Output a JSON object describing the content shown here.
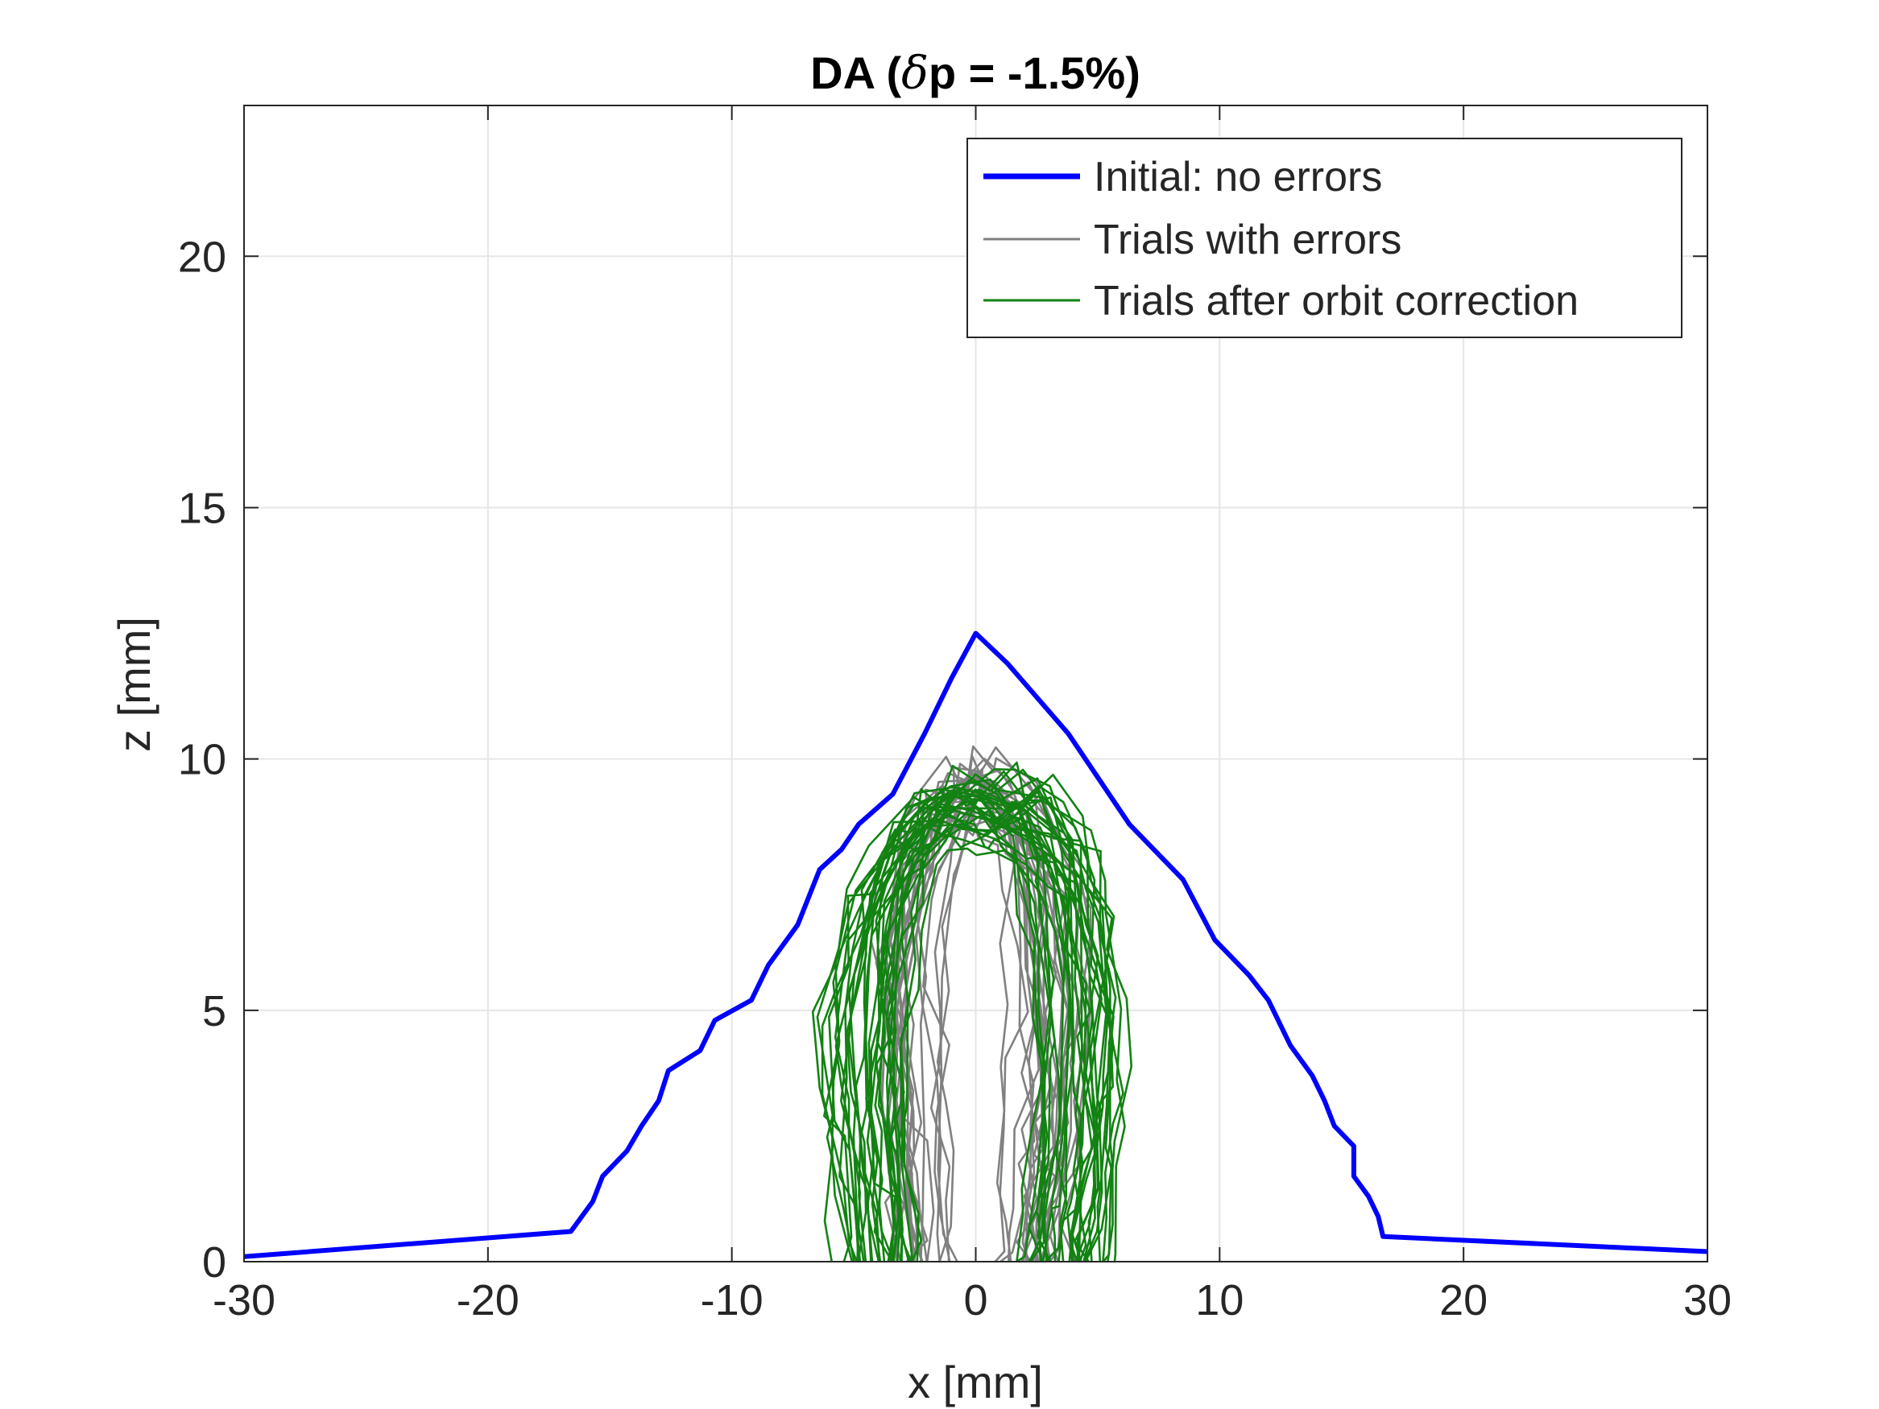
{
  "chart_data": {
    "type": "line",
    "title": "DA (δp = -1.5%)",
    "title_parts": [
      "DA (",
      "δ",
      "p = -1.5%)"
    ],
    "xlabel": "x [mm]",
    "ylabel": "z [mm]",
    "xlim": [
      -30,
      30
    ],
    "ylim": [
      0,
      23
    ],
    "xticks": [
      -30,
      -20,
      -10,
      0,
      10,
      20,
      30
    ],
    "yticks": [
      0,
      5,
      10,
      15,
      20
    ],
    "xtick_labels": [
      "-30",
      "-20",
      "-10",
      "0",
      "10",
      "20",
      "30"
    ],
    "ytick_labels": [
      "0",
      "5",
      "10",
      "15",
      "20"
    ],
    "grid": true,
    "legend_position": "top-right",
    "colors": {
      "initial": "#0000ff",
      "errors": "#808080",
      "corrected": "#128212",
      "axis": "#262626",
      "grid": "#e6e6e6"
    },
    "series": [
      {
        "name": "Initial: no errors",
        "color": "#0000ff",
        "x": [
          -30,
          -16.6,
          -15.7,
          -15.3,
          -14.3,
          -13.7,
          -13.0,
          -12.6,
          -11.3,
          -10.7,
          -9.2,
          -8.5,
          -7.3,
          -6.4,
          -5.5,
          -4.8,
          -3.4,
          -2.1,
          -1.0,
          0,
          1.3,
          3.8,
          6.3,
          8.5,
          9.8,
          11.2,
          12.0,
          12.9,
          13.8,
          14.3,
          14.7,
          15.5,
          15.5,
          16.1,
          16.5,
          16.7,
          30
        ],
        "y": [
          0.1,
          0.6,
          1.2,
          1.7,
          2.2,
          2.7,
          3.2,
          3.8,
          4.2,
          4.8,
          5.2,
          5.9,
          6.7,
          7.8,
          8.2,
          8.7,
          9.3,
          10.5,
          11.6,
          12.5,
          11.9,
          10.5,
          8.7,
          7.6,
          6.4,
          5.7,
          5.2,
          4.3,
          3.7,
          3.2,
          2.7,
          2.3,
          1.7,
          1.3,
          0.9,
          0.5,
          0.2
        ]
      },
      {
        "name": "Trials with errors",
        "color": "#808080"
      },
      {
        "name": "Trials after orbit correction",
        "color": "#128212"
      }
    ],
    "trial_groups": {
      "errors": {
        "count": 22,
        "base_x": [
          -2.3,
          -2.4,
          -2.5,
          -2.6,
          -2.7,
          -2.8,
          -2.5,
          -1.9,
          -1.2,
          -0.5,
          0.0,
          0.6,
          1.3,
          2.0,
          2.6,
          2.9,
          3.0,
          2.9,
          2.8,
          2.6,
          2.4,
          2.2
        ],
        "base_y": [
          0,
          0.8,
          2.0,
          3.2,
          4.6,
          6.0,
          7.4,
          8.4,
          9.0,
          9.3,
          9.35,
          9.3,
          9.0,
          8.5,
          7.6,
          6.3,
          5.0,
          3.8,
          2.6,
          1.5,
          0.6,
          0
        ],
        "x_spread": 1.2,
        "y_spread": 0.45,
        "shift_spread": 1.0
      },
      "corrected": {
        "count": 32,
        "base_x": [
          -4.0,
          -4.2,
          -4.4,
          -4.6,
          -4.6,
          -4.4,
          -3.9,
          -3.1,
          -2.1,
          -1.0,
          0.0,
          1.0,
          2.1,
          3.0,
          3.6,
          4.0,
          4.2,
          4.3,
          4.2,
          4.0,
          3.8,
          3.7
        ],
        "base_y": [
          0,
          0.9,
          2.0,
          3.3,
          4.7,
          6.0,
          7.2,
          8.0,
          8.6,
          8.9,
          9.0,
          8.95,
          8.8,
          8.4,
          7.6,
          6.4,
          5.1,
          3.8,
          2.6,
          1.5,
          0.6,
          0
        ],
        "x_spread": 0.9,
        "y_spread": 0.5,
        "shift_spread": 0.6
      }
    }
  }
}
